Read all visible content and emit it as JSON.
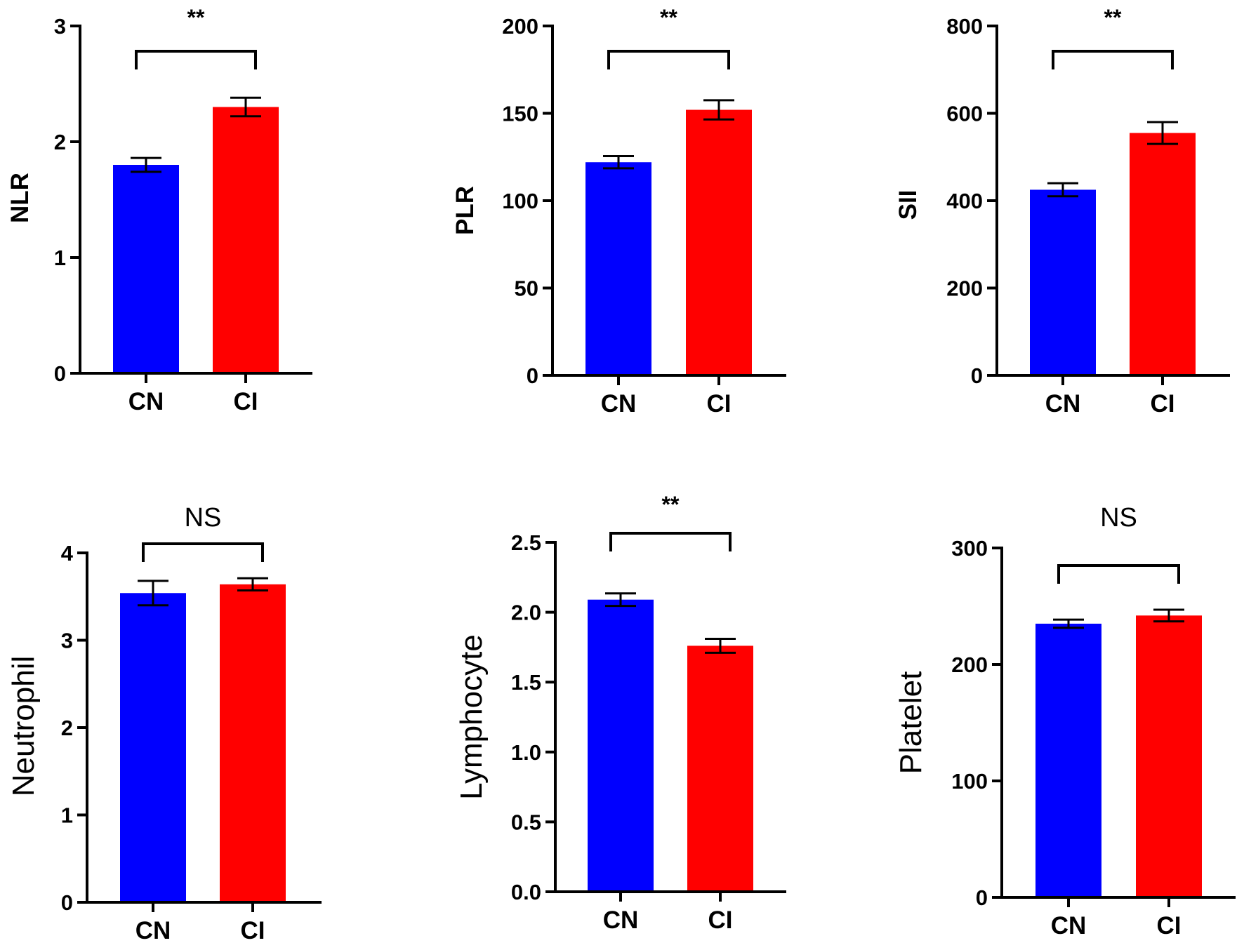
{
  "chart_data": [
    {
      "type": "bar",
      "ylabel": "NLR",
      "categories": [
        "CN",
        "CI"
      ],
      "values": [
        1.8,
        2.3
      ],
      "errors": [
        0.06,
        0.08
      ],
      "ylim": [
        0,
        3
      ],
      "yticks": [
        0,
        1,
        2,
        3
      ],
      "tick_labels": [
        "0",
        "1",
        "2",
        "3"
      ],
      "significance": "**",
      "colors": [
        "#0000ff",
        "#ff0000"
      ]
    },
    {
      "type": "bar",
      "ylabel": "PLR",
      "categories": [
        "CN",
        "CI"
      ],
      "values": [
        122,
        152
      ],
      "errors": [
        3.5,
        5.5
      ],
      "ylim": [
        0,
        200
      ],
      "yticks": [
        0,
        50,
        100,
        150,
        200
      ],
      "tick_labels": [
        "0",
        "50",
        "100",
        "150",
        "200"
      ],
      "significance": "**",
      "colors": [
        "#0000ff",
        "#ff0000"
      ]
    },
    {
      "type": "bar",
      "ylabel": "SII",
      "categories": [
        "CN",
        "CI"
      ],
      "values": [
        425,
        555
      ],
      "errors": [
        15,
        25
      ],
      "ylim": [
        0,
        800
      ],
      "yticks": [
        0,
        200,
        400,
        600,
        800
      ],
      "tick_labels": [
        "0",
        "200",
        "400",
        "600",
        "800"
      ],
      "significance": "**",
      "colors": [
        "#0000ff",
        "#ff0000"
      ]
    },
    {
      "type": "bar",
      "ylabel": "Neutrophil",
      "categories": [
        "CN",
        "CI"
      ],
      "values": [
        3.54,
        3.64
      ],
      "errors": [
        0.14,
        0.07
      ],
      "ylim": [
        0,
        4
      ],
      "yticks": [
        0,
        1,
        2,
        3,
        4
      ],
      "tick_labels": [
        "0",
        "1",
        "2",
        "3",
        "4"
      ],
      "significance": "NS",
      "colors": [
        "#0000ff",
        "#ff0000"
      ]
    },
    {
      "type": "bar",
      "ylabel": "Lymphocyte",
      "categories": [
        "CN",
        "CI"
      ],
      "values": [
        2.09,
        1.76
      ],
      "errors": [
        0.045,
        0.05
      ],
      "ylim": [
        0,
        2.5
      ],
      "yticks": [
        0,
        0.5,
        1,
        1.5,
        2,
        2.5
      ],
      "tick_labels": [
        "0.0",
        "0.5",
        "1.0",
        "1.5",
        "2.0",
        "2.5"
      ],
      "significance": "**",
      "colors": [
        "#0000ff",
        "#ff0000"
      ]
    },
    {
      "type": "bar",
      "ylabel": "Platelet",
      "categories": [
        "CN",
        "CI"
      ],
      "values": [
        235,
        242
      ],
      "errors": [
        3.5,
        5
      ],
      "ylim": [
        0,
        300
      ],
      "yticks": [
        0,
        100,
        200,
        300
      ],
      "tick_labels": [
        "0",
        "100",
        "200",
        "300"
      ],
      "significance": "NS",
      "colors": [
        "#0000ff",
        "#ff0000"
      ]
    }
  ]
}
